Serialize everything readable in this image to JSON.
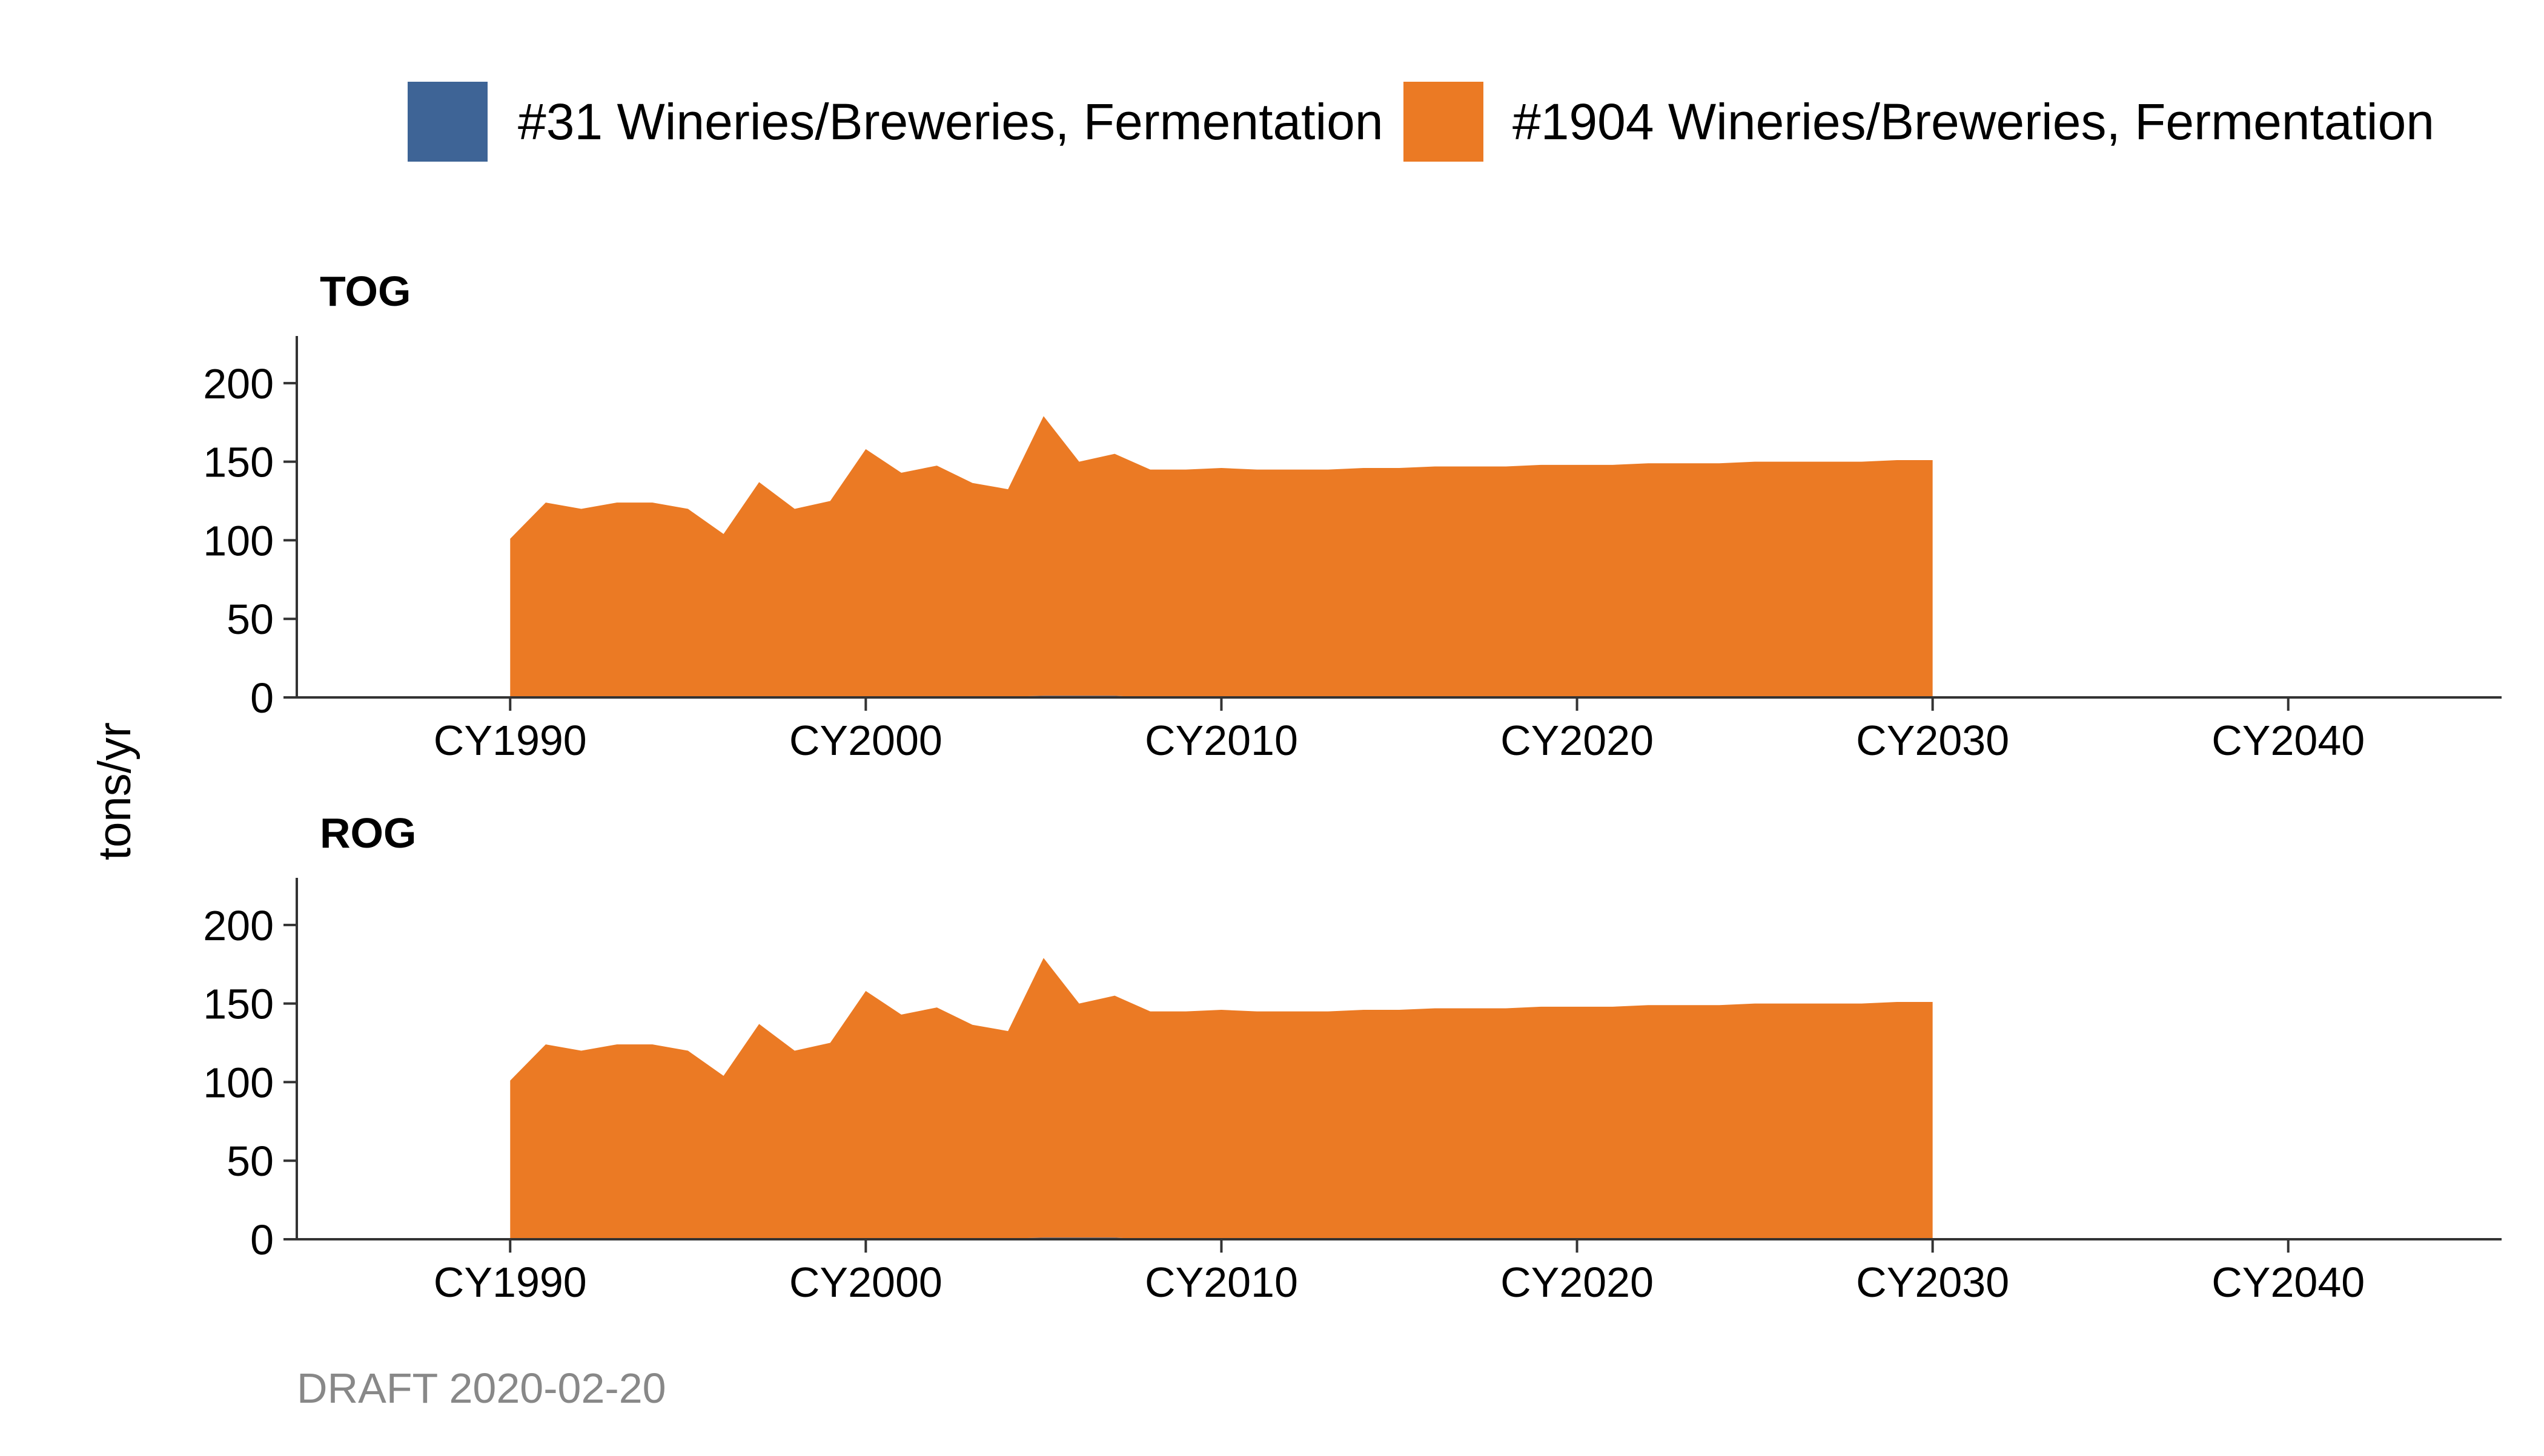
{
  "legend": [
    {
      "label": "#31 Wineries/Breweries, Fermentation",
      "color": "#3E6496"
    },
    {
      "label": "#1904 Wineries/Breweries, Fermentation",
      "color": "#EB7A24"
    }
  ],
  "y_axis_title": "tons/yr",
  "caption": "DRAFT 2020-02-20",
  "chart_data": [
    {
      "type": "area",
      "stacked": true,
      "title": "TOG",
      "ylabel": "tons/yr",
      "xlim": [
        1984,
        2046
      ],
      "ylim": [
        0,
        230
      ],
      "x_ticks": [
        1990,
        2000,
        2010,
        2020,
        2030,
        2040
      ],
      "x_tick_labels": [
        "CY1990",
        "CY2000",
        "CY2010",
        "CY2020",
        "CY2030",
        "CY2040"
      ],
      "y_ticks": [
        0,
        50,
        100,
        150,
        200
      ],
      "y_tick_labels": [
        "0",
        "50",
        "100",
        "150",
        "200"
      ],
      "grid": false,
      "x": [
        1990,
        1991,
        1992,
        1993,
        1994,
        1995,
        1996,
        1997,
        1998,
        1999,
        2000,
        2001,
        2002,
        2003,
        2004,
        2005,
        2006,
        2007,
        2008,
        2009,
        2010,
        2011,
        2012,
        2013,
        2014,
        2015,
        2016,
        2017,
        2018,
        2019,
        2020,
        2021,
        2022,
        2023,
        2024,
        2025,
        2026,
        2027,
        2028,
        2029,
        2030
      ],
      "series": [
        {
          "name": "#31 Wineries/Breweries, Fermentation",
          "color": "#3E6496",
          "values": [
            0,
            0,
            0,
            0,
            0,
            0,
            0,
            0,
            0,
            0,
            0,
            0,
            0.5,
            0.5,
            0.5,
            1,
            1,
            1,
            0,
            0,
            0,
            0,
            0,
            0,
            0,
            0,
            0,
            0,
            0,
            0,
            0,
            0,
            0,
            0,
            0,
            0,
            0,
            0,
            0,
            0,
            0
          ]
        },
        {
          "name": "#1904 Wineries/Breweries, Fermentation",
          "color": "#EB7A24",
          "values": [
            101,
            124,
            120,
            124,
            124,
            120,
            104,
            137,
            120,
            125,
            158,
            143,
            147,
            136,
            132,
            178,
            149,
            154,
            145,
            145,
            146,
            145,
            145,
            145,
            146,
            146,
            147,
            147,
            147,
            148,
            148,
            148,
            149,
            149,
            149,
            150,
            150,
            150,
            150,
            151,
            151
          ]
        }
      ]
    },
    {
      "type": "area",
      "stacked": true,
      "title": "ROG",
      "ylabel": "tons/yr",
      "xlim": [
        1984,
        2046
      ],
      "ylim": [
        0,
        230
      ],
      "x_ticks": [
        1990,
        2000,
        2010,
        2020,
        2030,
        2040
      ],
      "x_tick_labels": [
        "CY1990",
        "CY2000",
        "CY2010",
        "CY2020",
        "CY2030",
        "CY2040"
      ],
      "y_ticks": [
        0,
        50,
        100,
        150,
        200
      ],
      "y_tick_labels": [
        "0",
        "50",
        "100",
        "150",
        "200"
      ],
      "grid": false,
      "x": [
        1990,
        1991,
        1992,
        1993,
        1994,
        1995,
        1996,
        1997,
        1998,
        1999,
        2000,
        2001,
        2002,
        2003,
        2004,
        2005,
        2006,
        2007,
        2008,
        2009,
        2010,
        2011,
        2012,
        2013,
        2014,
        2015,
        2016,
        2017,
        2018,
        2019,
        2020,
        2021,
        2022,
        2023,
        2024,
        2025,
        2026,
        2027,
        2028,
        2029,
        2030
      ],
      "series": [
        {
          "name": "#31 Wineries/Breweries, Fermentation",
          "color": "#3E6496",
          "values": [
            0,
            0,
            0,
            0,
            0,
            0,
            0,
            0,
            0,
            0,
            0,
            0,
            0.5,
            0.5,
            0.5,
            1,
            1,
            1,
            0,
            0,
            0,
            0,
            0,
            0,
            0,
            0,
            0,
            0,
            0,
            0,
            0,
            0,
            0,
            0,
            0,
            0,
            0,
            0,
            0,
            0,
            0
          ]
        },
        {
          "name": "#1904 Wineries/Breweries, Fermentation",
          "color": "#EB7A24",
          "values": [
            101,
            124,
            120,
            124,
            124,
            120,
            104,
            137,
            120,
            125,
            158,
            143,
            147,
            136,
            132,
            178,
            149,
            154,
            145,
            145,
            146,
            145,
            145,
            145,
            146,
            146,
            147,
            147,
            147,
            148,
            148,
            148,
            149,
            149,
            149,
            150,
            150,
            150,
            150,
            151,
            151
          ]
        }
      ]
    }
  ]
}
